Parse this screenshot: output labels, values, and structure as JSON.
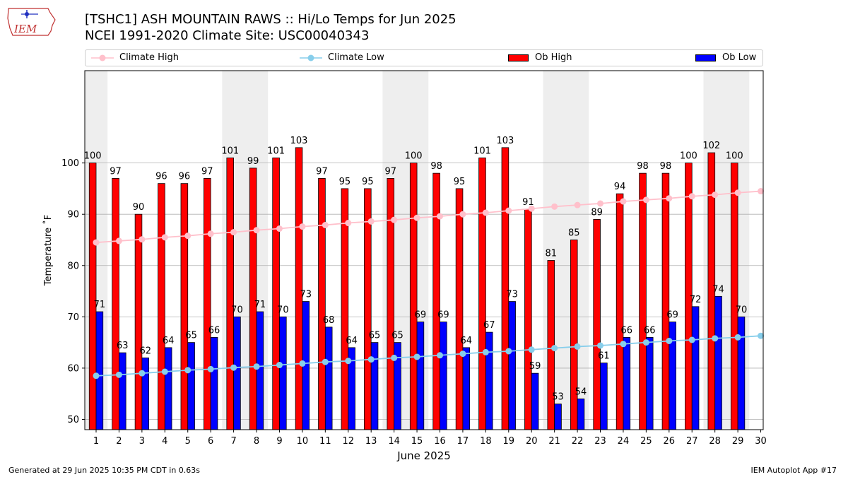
{
  "header": {
    "title_line1": "[TSHC1] ASH MOUNTAIN RAWS :: Hi/Lo Temps for Jun 2025",
    "title_line2": "NCEI 1991-2020 Climate Site: USC00040343",
    "logo_text": "IEM"
  },
  "footer": {
    "generated": "Generated at 29 Jun 2025 10:35 PM CDT in 0.63s",
    "app": "IEM Autoplot App #17"
  },
  "colors": {
    "ob_high": "#ff0000",
    "ob_low": "#0000ff",
    "climate_high": "#ffc0cb",
    "climate_low": "#87ceeb",
    "weekend_band": "#eeeeee",
    "grid": "#b0b0b0"
  },
  "chart_data": {
    "type": "bar",
    "title": "[TSHC1] ASH MOUNTAIN RAWS :: Hi/Lo Temps for Jun 2025",
    "subtitle": "NCEI 1991-2020 Climate Site: USC00040343",
    "xlabel": "June 2025",
    "ylabel": "Temperature ˚F",
    "ylim": [
      48,
      118
    ],
    "yticks": [
      50,
      60,
      70,
      80,
      90,
      100
    ],
    "categories": [
      "1",
      "2",
      "3",
      "4",
      "5",
      "6",
      "7",
      "8",
      "9",
      "10",
      "11",
      "12",
      "13",
      "14",
      "15",
      "16",
      "17",
      "18",
      "19",
      "20",
      "21",
      "22",
      "23",
      "24",
      "25",
      "26",
      "27",
      "28",
      "29",
      "30"
    ],
    "weekend_bands": [
      [
        1,
        1
      ],
      [
        7,
        8
      ],
      [
        14,
        15
      ],
      [
        21,
        22
      ],
      [
        28,
        29
      ]
    ],
    "legend": {
      "climate_high": "Climate High",
      "climate_low": "Climate Low",
      "ob_high": "Ob High",
      "ob_low": "Ob Low"
    },
    "series": [
      {
        "name": "Ob High",
        "kind": "bar",
        "values": [
          100,
          97,
          90,
          96,
          96,
          97,
          101,
          99,
          101,
          103,
          97,
          95,
          95,
          97,
          100,
          98,
          95,
          101,
          103,
          91,
          81,
          85,
          89,
          94,
          98,
          98,
          100,
          102,
          100,
          null
        ]
      },
      {
        "name": "Ob Low",
        "kind": "bar",
        "values": [
          71,
          63,
          62,
          64,
          65,
          66,
          70,
          71,
          70,
          73,
          68,
          64,
          65,
          65,
          69,
          69,
          64,
          67,
          73,
          59,
          53,
          54,
          61,
          66,
          66,
          69,
          72,
          74,
          70,
          null
        ]
      },
      {
        "name": "Climate High",
        "kind": "line",
        "values": [
          84.5,
          84.8,
          85.1,
          85.5,
          85.8,
          86.2,
          86.5,
          86.9,
          87.2,
          87.6,
          87.9,
          88.3,
          88.6,
          88.9,
          89.3,
          89.6,
          90.0,
          90.3,
          90.7,
          91.1,
          91.5,
          91.8,
          92.1,
          92.5,
          92.8,
          93.1,
          93.5,
          93.8,
          94.2,
          94.5
        ]
      },
      {
        "name": "Climate Low",
        "kind": "line",
        "values": [
          58.5,
          58.7,
          59.0,
          59.3,
          59.6,
          59.8,
          60.1,
          60.3,
          60.6,
          60.9,
          61.2,
          61.4,
          61.7,
          62.0,
          62.2,
          62.5,
          62.8,
          63.1,
          63.3,
          63.6,
          63.9,
          64.2,
          64.4,
          64.7,
          65.0,
          65.3,
          65.5,
          65.8,
          66.0,
          66.3
        ]
      }
    ]
  }
}
